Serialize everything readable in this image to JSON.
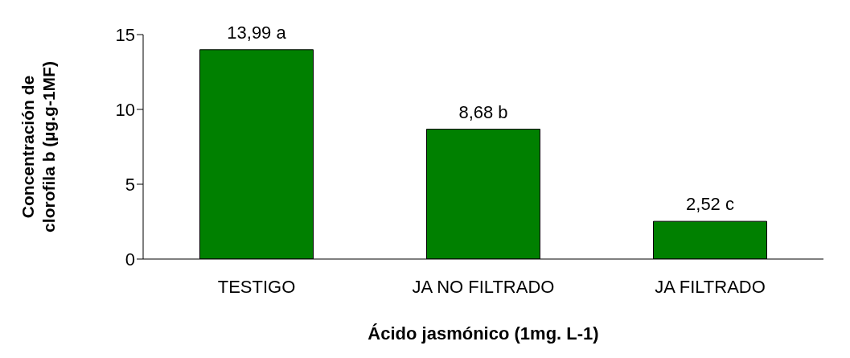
{
  "chart_data": {
    "type": "bar",
    "xlabel": "Ácido jasmónico (1mg. L-1)",
    "ylabel": "Concentración de\nclorofila b  (µg.g-1MF)",
    "categories": [
      "TESTIGO",
      "JA NO FILTRADO",
      "JA FILTRADO"
    ],
    "values": [
      13.99,
      8.68,
      2.52
    ],
    "value_labels": [
      "13,99 a",
      "8,68 b",
      "2,52 c"
    ],
    "color": "#008000",
    "ylim": [
      0,
      15
    ],
    "yticks": [
      0,
      5,
      10,
      15
    ],
    "grid": false
  }
}
